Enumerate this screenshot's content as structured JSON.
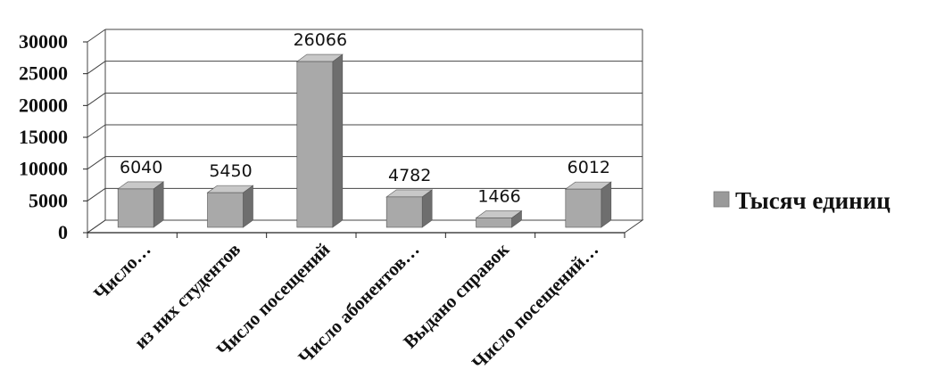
{
  "chart_data": {
    "type": "bar",
    "categories": [
      "Число…",
      "из них студентов",
      "Число посещений",
      "Число абонентов…",
      "Выдано справок",
      "Число посещений…"
    ],
    "series": [
      {
        "name": "Тысяч единиц",
        "values": [
          6040,
          5450,
          26066,
          4782,
          1466,
          6012
        ]
      }
    ],
    "data_labels": [
      "6040",
      "5450",
      "26066",
      "4782",
      "1466",
      "6012"
    ],
    "yticks": [
      "0",
      "5000",
      "10000",
      "15000",
      "20000",
      "25000",
      "30000"
    ],
    "ylim": [
      0,
      30000
    ],
    "grid": true,
    "legend_position": "right",
    "three_d": true,
    "colors": {
      "bar_front": "#a9a9a9",
      "bar_side": "#6e6e6e",
      "bar_top": "#c8c8c8",
      "grid": "#444444",
      "legend_swatch": "#9a9a9a"
    }
  }
}
